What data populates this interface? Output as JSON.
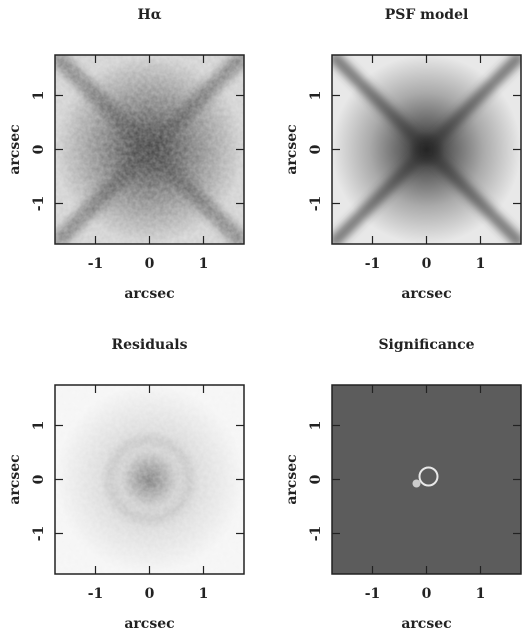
{
  "chart_data": [
    {
      "type": "image",
      "title": "Hα",
      "xlabel": "arcsec",
      "ylabel": "arcsec",
      "xlim": [
        -1.75,
        1.75
      ],
      "ylim": [
        -1.75,
        1.75
      ],
      "xticks": [
        -1,
        0,
        1
      ],
      "yticks": [
        -1,
        0,
        1
      ]
    },
    {
      "type": "image",
      "title": "PSF model",
      "xlabel": "arcsec",
      "ylabel": "arcsec",
      "xlim": [
        -1.75,
        1.75
      ],
      "ylim": [
        -1.75,
        1.75
      ],
      "xticks": [
        -1,
        0,
        1
      ],
      "yticks": [
        -1,
        0,
        1
      ]
    },
    {
      "type": "image",
      "title": "Residuals",
      "xlabel": "arcsec",
      "ylabel": "arcsec",
      "xlim": [
        -1.75,
        1.75
      ],
      "ylim": [
        -1.75,
        1.75
      ],
      "xticks": [
        -1,
        0,
        1
      ],
      "yticks": [
        -1,
        0,
        1
      ]
    },
    {
      "type": "image",
      "title": "Significance",
      "xlabel": "arcsec",
      "ylabel": "arcsec",
      "xlim": [
        -1.75,
        1.75
      ],
      "ylim": [
        -1.75,
        1.75
      ],
      "xticks": [
        -1,
        0,
        1
      ],
      "yticks": [
        -1,
        0,
        1
      ]
    }
  ]
}
